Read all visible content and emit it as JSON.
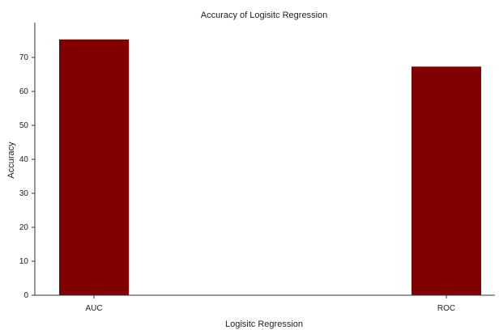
{
  "chart_data": {
    "type": "bar",
    "title": "Accuracy of Logisitc Regression",
    "xlabel": "Logisitc Regression",
    "ylabel": "Accuracy",
    "categories": [
      "AUC",
      "ROC"
    ],
    "values": [
      75.3,
      67.3
    ],
    "ylim": [
      0,
      80
    ],
    "yticks": [
      0,
      10,
      20,
      30,
      40,
      50,
      60,
      70
    ],
    "grid": false,
    "legend": "none",
    "bar_color": "#800000"
  }
}
